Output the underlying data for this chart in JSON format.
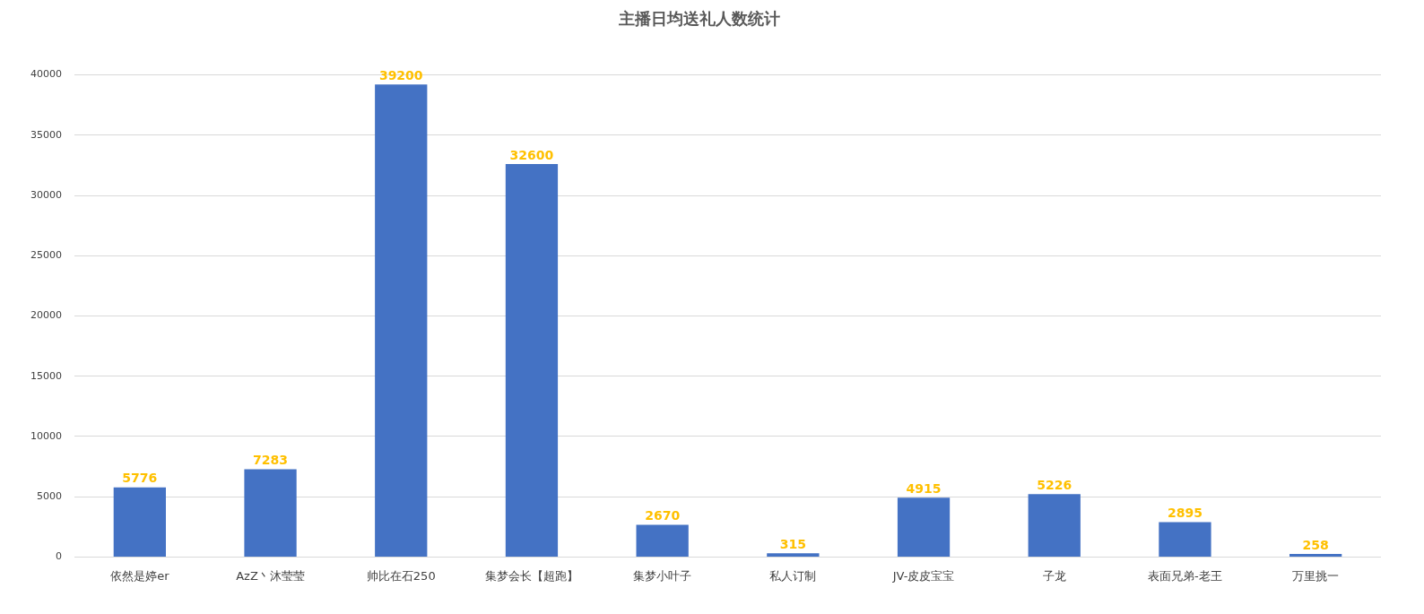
{
  "chart_data": {
    "type": "bar",
    "title": "主播日均送礼人数统计",
    "categories": [
      "依然是婷er",
      "AzZ丶沐莹莹",
      "帅比在石250",
      "集梦会长【超跑】",
      "集梦小叶子",
      "私人订制",
      "JV-皮皮宝宝",
      "子龙",
      "表面兄弟-老王",
      "万里挑一"
    ],
    "values": [
      5776,
      7283,
      39200,
      32600,
      2670,
      315,
      4915,
      5226,
      2895,
      258
    ],
    "color": "#4472c4",
    "ylim": [
      0,
      40000
    ],
    "yticks": [
      0,
      5000,
      10000,
      15000,
      20000,
      25000,
      30000,
      35000,
      40000
    ],
    "grid": "y",
    "legend": false,
    "data_labels": true
  }
}
